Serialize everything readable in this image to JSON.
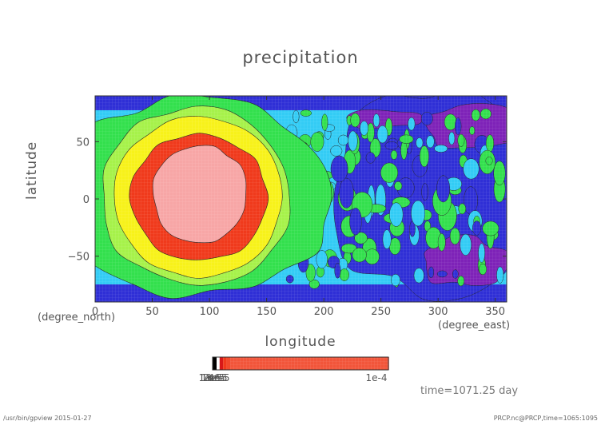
{
  "chart_data": {
    "type": "heatmap",
    "title": "precipitation",
    "xlabel": "longitude",
    "ylabel": "latitude",
    "x_unit": "(degree_east)",
    "y_unit": "(degree_north)",
    "xlim": [
      0,
      360
    ],
    "ylim": [
      -90,
      90
    ],
    "x_ticks": [
      0,
      50,
      100,
      150,
      200,
      250,
      300,
      350
    ],
    "y_ticks": [
      -50,
      0,
      50
    ],
    "colorbar": {
      "levels": [
        "1e-6",
        "1e-5",
        "2e-5",
        "3e-5",
        "4e-5",
        "1e-4"
      ],
      "tick_labels": [
        "1e-6",
        "1e-5",
        "2e-5",
        "3e-5",
        "4e-5",
        "1e-4"
      ],
      "colors": [
        "#000000",
        "#d81818",
        "#f03a1c",
        "#f24a2c",
        "#f2553a",
        "#f7a6a6"
      ]
    },
    "field_colors": {
      "purple": "#7e22b8",
      "blue": "#2f2fd6",
      "cyan": "#33ccf5",
      "green": "#33e04d",
      "lime": "#a6f24a",
      "yellow": "#f7f21a",
      "red": "#f03a1c",
      "pink": "#f7a6a6"
    },
    "annotation": "time=1071.25 day"
  },
  "footer": {
    "left": "/usr/bin/gpview  2015-01-27",
    "right": "PRCP.nc@PRCP,time=1065:1095"
  }
}
